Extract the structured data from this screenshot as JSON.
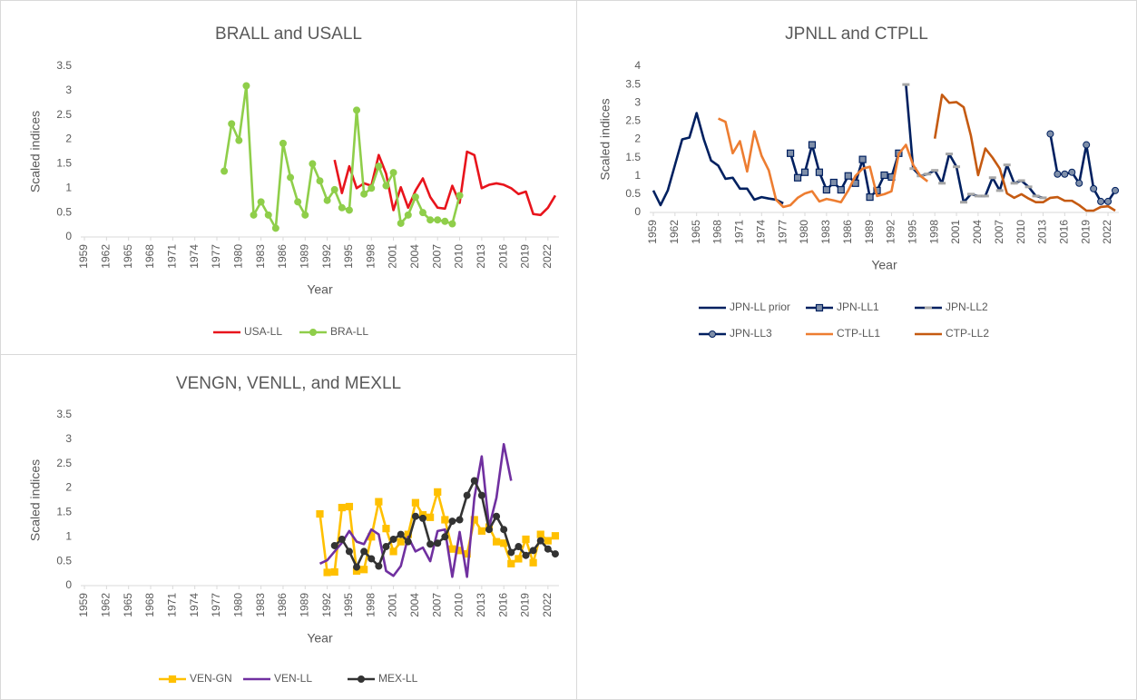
{
  "chart_data": [
    {
      "type": "line",
      "title": "BRALL and USALL",
      "x_label": "Year",
      "y_label": "Scaled indices",
      "xlim": [
        1958.5,
        2023.5
      ],
      "xticks": [
        1959,
        1962,
        1965,
        1968,
        1971,
        1974,
        1977,
        1980,
        1983,
        1986,
        1989,
        1992,
        1995,
        1998,
        2001,
        2004,
        2007,
        2010,
        2013,
        2016,
        2019,
        2022
      ],
      "ylim": [
        0,
        3.5
      ],
      "yticks": [
        0,
        0.5,
        1,
        1.5,
        2,
        2.5,
        3,
        3.5
      ],
      "grid": false,
      "series": [
        {
          "name": "USA-LL",
          "color": "#e8141c",
          "marker": "none",
          "x": [
            1993,
            1994,
            1995,
            1996,
            1997,
            1998,
            1999,
            2000,
            2001,
            2002,
            2003,
            2004,
            2005,
            2006,
            2007,
            2008,
            2009,
            2010,
            2011,
            2012,
            2013,
            2014,
            2015,
            2016,
            2017,
            2018,
            2019,
            2020,
            2021,
            2022,
            2023
          ],
          "values": [
            1.58,
            0.9,
            1.45,
            1.0,
            1.1,
            1.05,
            1.68,
            1.3,
            0.55,
            1.02,
            0.6,
            0.95,
            1.2,
            0.82,
            0.6,
            0.58,
            1.05,
            0.7,
            1.75,
            1.68,
            1.0,
            1.07,
            1.1,
            1.07,
            1.0,
            0.88,
            0.93,
            0.47,
            0.45,
            0.6,
            0.85
          ]
        },
        {
          "name": "BRA-LL",
          "color": "#8fce4a",
          "marker": "circle",
          "x": [
            1978,
            1979,
            1980,
            1981,
            1982,
            1983,
            1984,
            1985,
            1986,
            1987,
            1988,
            1989,
            1990,
            1991,
            1992,
            1993,
            1994,
            1995,
            1996,
            1997,
            1998,
            1999,
            2000,
            2001,
            2002,
            2003,
            2004,
            2005,
            2006,
            2007,
            2008,
            2009,
            2010
          ],
          "values": [
            1.35,
            2.32,
            1.98,
            3.1,
            0.45,
            0.72,
            0.45,
            0.18,
            1.92,
            1.22,
            0.72,
            0.45,
            1.5,
            1.15,
            0.75,
            0.97,
            0.6,
            0.55,
            2.6,
            0.88,
            1.0,
            1.45,
            1.05,
            1.32,
            0.28,
            0.45,
            0.82,
            0.5,
            0.35,
            0.35,
            0.32,
            0.27,
            0.85
          ]
        }
      ]
    },
    {
      "type": "line",
      "title": "JPNLL and CTPLL",
      "x_label": "Year",
      "y_label": "Scaled indices",
      "xlim": [
        1958.5,
        2023.5
      ],
      "xticks": [
        1959,
        1962,
        1965,
        1968,
        1971,
        1974,
        1977,
        1980,
        1983,
        1986,
        1989,
        1992,
        1995,
        1998,
        2001,
        2004,
        2007,
        2010,
        2013,
        2016,
        2019,
        2022
      ],
      "ylim": [
        0,
        4
      ],
      "yticks": [
        0,
        0.5,
        1,
        1.5,
        2,
        2.5,
        3,
        3.5,
        4
      ],
      "grid": false,
      "series": [
        {
          "name": "JPN-LL prior",
          "color": "#002060",
          "marker": "none",
          "x": [
            1959,
            1960,
            1961,
            1962,
            1963,
            1964,
            1965,
            1966,
            1967,
            1968,
            1969,
            1970,
            1971,
            1972,
            1973,
            1974,
            1975,
            1976,
            1977
          ],
          "values": [
            0.6,
            0.2,
            0.6,
            1.3,
            2.0,
            2.05,
            2.72,
            2.0,
            1.42,
            1.28,
            0.92,
            0.95,
            0.65,
            0.65,
            0.35,
            0.42,
            0.38,
            0.35,
            0.25
          ]
        },
        {
          "name": "JPN-LL1",
          "color": "#002060",
          "marker": "square",
          "marker_color": "#7f8fa9",
          "x": [
            1978,
            1979,
            1980,
            1981,
            1982,
            1983,
            1984,
            1985,
            1986,
            1987,
            1988,
            1989,
            1990,
            1991,
            1992,
            1993
          ],
          "values": [
            1.62,
            0.95,
            1.1,
            1.85,
            1.1,
            0.62,
            0.82,
            0.62,
            1.0,
            0.8,
            1.45,
            0.42,
            0.6,
            1.02,
            0.97,
            1.62
          ]
        },
        {
          "name": "JPN-LL2",
          "color": "#002060",
          "marker": "dash",
          "marker_color": "#a6a6a6",
          "x": [
            1994,
            1995,
            1996,
            1997,
            1998,
            1999,
            2000,
            2001,
            2002,
            2003,
            2004,
            2005,
            2006,
            2007,
            2008,
            2009,
            2010,
            2011,
            2012,
            2013
          ],
          "values": [
            3.5,
            1.2,
            1.0,
            1.05,
            1.15,
            0.8,
            1.6,
            1.25,
            0.28,
            0.5,
            0.45,
            0.45,
            0.95,
            0.6,
            1.3,
            0.8,
            0.87,
            0.7,
            0.45,
            0.4
          ]
        },
        {
          "name": "JPN-LL3",
          "color": "#002060",
          "marker": "circle",
          "marker_color": "#7f8fa9",
          "x": [
            2014,
            2015,
            2016,
            2017,
            2018,
            2019,
            2020,
            2021,
            2022,
            2023
          ],
          "values": [
            2.15,
            1.05,
            1.05,
            1.1,
            0.8,
            1.85,
            0.65,
            0.3,
            0.3,
            0.6
          ]
        },
        {
          "name": "CTP-LL1",
          "color": "#ed7d31",
          "marker": "none",
          "x": [
            1968,
            1969,
            1970,
            1971,
            1972,
            1973,
            1974,
            1975,
            1976,
            1977,
            1978,
            1979,
            1980,
            1981,
            1982,
            1983,
            1984,
            1985,
            1986,
            1987,
            1988,
            1989,
            1990,
            1991,
            1992,
            1993,
            1994,
            1995,
            1996,
            1997
          ],
          "values": [
            2.57,
            2.48,
            1.62,
            1.95,
            1.12,
            2.22,
            1.55,
            1.15,
            0.35,
            0.15,
            0.2,
            0.4,
            0.52,
            0.58,
            0.3,
            0.37,
            0.33,
            0.28,
            0.6,
            1.0,
            1.2,
            1.25,
            0.45,
            0.5,
            0.58,
            1.6,
            1.85,
            1.3,
            1.0,
            0.85
          ]
        },
        {
          "name": "CTP-LL2",
          "color": "#c55a11",
          "marker": "none",
          "x": [
            1998,
            1999,
            2000,
            2001,
            2002,
            2003,
            2004,
            2005,
            2006,
            2007,
            2008,
            2009,
            2010,
            2011,
            2012,
            2013,
            2014,
            2015,
            2016,
            2017,
            2018,
            2019,
            2020,
            2021,
            2022,
            2023
          ],
          "values": [
            2.02,
            3.22,
            3.0,
            3.02,
            2.88,
            2.1,
            1.02,
            1.75,
            1.5,
            1.2,
            0.52,
            0.4,
            0.5,
            0.38,
            0.28,
            0.28,
            0.4,
            0.42,
            0.32,
            0.32,
            0.2,
            0.05,
            0.05,
            0.15,
            0.17,
            0.05
          ]
        }
      ]
    },
    {
      "type": "line",
      "title": "VENGN, VENLL, and MEXLL",
      "x_label": "Year",
      "y_label": "Scaled indices",
      "xlim": [
        1958.5,
        2023.5
      ],
      "xticks": [
        1959,
        1962,
        1965,
        1968,
        1971,
        1974,
        1977,
        1980,
        1983,
        1986,
        1989,
        1992,
        1995,
        1998,
        2001,
        2004,
        2007,
        2010,
        2013,
        2016,
        2019,
        2022
      ],
      "ylim": [
        0,
        3.5
      ],
      "yticks": [
        0,
        0.5,
        1,
        1.5,
        2,
        2.5,
        3,
        3.5
      ],
      "grid": false,
      "series": [
        {
          "name": "VEN-GN",
          "color": "#ffc000",
          "marker": "square",
          "x": [
            1991,
            1992,
            1993,
            1994,
            1995,
            1996,
            1997,
            1998,
            1999,
            2000,
            2001,
            2002,
            2003,
            2004,
            2005,
            2006,
            2007,
            2008,
            2009,
            2010,
            2011,
            2012,
            2013,
            2014,
            2015,
            2016,
            2017,
            2018,
            2019,
            2020,
            2021,
            2022,
            2023
          ],
          "values": [
            1.47,
            0.27,
            0.28,
            1.6,
            1.62,
            0.3,
            0.33,
            1.0,
            1.72,
            1.17,
            0.7,
            0.9,
            1.05,
            1.7,
            1.45,
            1.4,
            1.92,
            1.35,
            0.75,
            0.72,
            0.65,
            1.35,
            1.12,
            1.2,
            0.9,
            0.87,
            0.45,
            0.55,
            0.95,
            0.47,
            1.05,
            0.92,
            1.02
          ]
        },
        {
          "name": "VEN-LL",
          "color": "#7030a0",
          "marker": "none",
          "x": [
            1991,
            1992,
            1993,
            1994,
            1995,
            1996,
            1997,
            1998,
            1999,
            2000,
            2001,
            2002,
            2003,
            2004,
            2005,
            2006,
            2007,
            2008,
            2009,
            2010,
            2011,
            2012,
            2013,
            2014,
            2015,
            2016,
            2017
          ],
          "values": [
            0.45,
            0.52,
            0.7,
            0.88,
            1.12,
            0.9,
            0.85,
            1.15,
            1.05,
            0.3,
            0.2,
            0.4,
            1.0,
            0.7,
            0.78,
            0.5,
            1.12,
            1.15,
            0.18,
            1.1,
            0.18,
            1.8,
            2.65,
            1.2,
            1.8,
            2.9,
            2.15
          ]
        },
        {
          "name": "MEX-LL",
          "color": "#333333",
          "marker": "circle",
          "x": [
            1993,
            1994,
            1995,
            1996,
            1997,
            1998,
            1999,
            2000,
            2001,
            2002,
            2003,
            2004,
            2005,
            2006,
            2007,
            2008,
            2009,
            2010,
            2011,
            2012,
            2013,
            2014,
            2015,
            2016,
            2017,
            2018,
            2019,
            2020,
            2021,
            2022,
            2023
          ],
          "values": [
            0.82,
            0.95,
            0.7,
            0.38,
            0.7,
            0.55,
            0.4,
            0.8,
            0.95,
            1.05,
            0.9,
            1.42,
            1.38,
            0.85,
            0.87,
            1.0,
            1.32,
            1.35,
            1.85,
            2.15,
            1.85,
            1.15,
            1.42,
            1.15,
            0.68,
            0.8,
            0.62,
            0.72,
            0.92,
            0.75,
            0.65
          ]
        }
      ]
    }
  ]
}
